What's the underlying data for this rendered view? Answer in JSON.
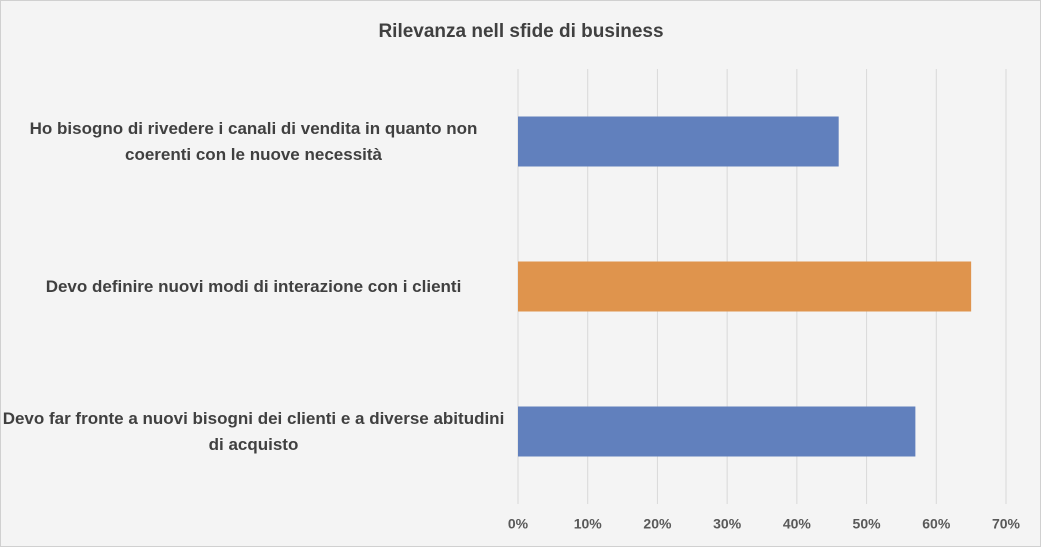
{
  "chart_data": {
    "type": "hbar",
    "title": "Rilevanza nell sfide di business",
    "categories": [
      "Ho bisogno di rivedere i canali di vendita in quanto non coerenti con le nuove necessità",
      "Devo definire nuovi modi di interazione con i clienti",
      "Devo far fronte a nuovi bisogni dei clienti e a diverse abitudini di acquisto"
    ],
    "values": [
      46,
      65,
      57
    ],
    "colors": [
      "#6180bd",
      "#df944d",
      "#6180bd"
    ],
    "xlim": [
      0,
      70
    ],
    "xticks": [
      {
        "value": 0,
        "label": "0%"
      },
      {
        "value": 10,
        "label": "10%"
      },
      {
        "value": 20,
        "label": "20%"
      },
      {
        "value": 30,
        "label": "30%"
      },
      {
        "value": 40,
        "label": "40%"
      },
      {
        "value": 50,
        "label": "50%"
      },
      {
        "value": 60,
        "label": "60%"
      },
      {
        "value": 70,
        "label": "70%"
      }
    ],
    "grid": true
  }
}
